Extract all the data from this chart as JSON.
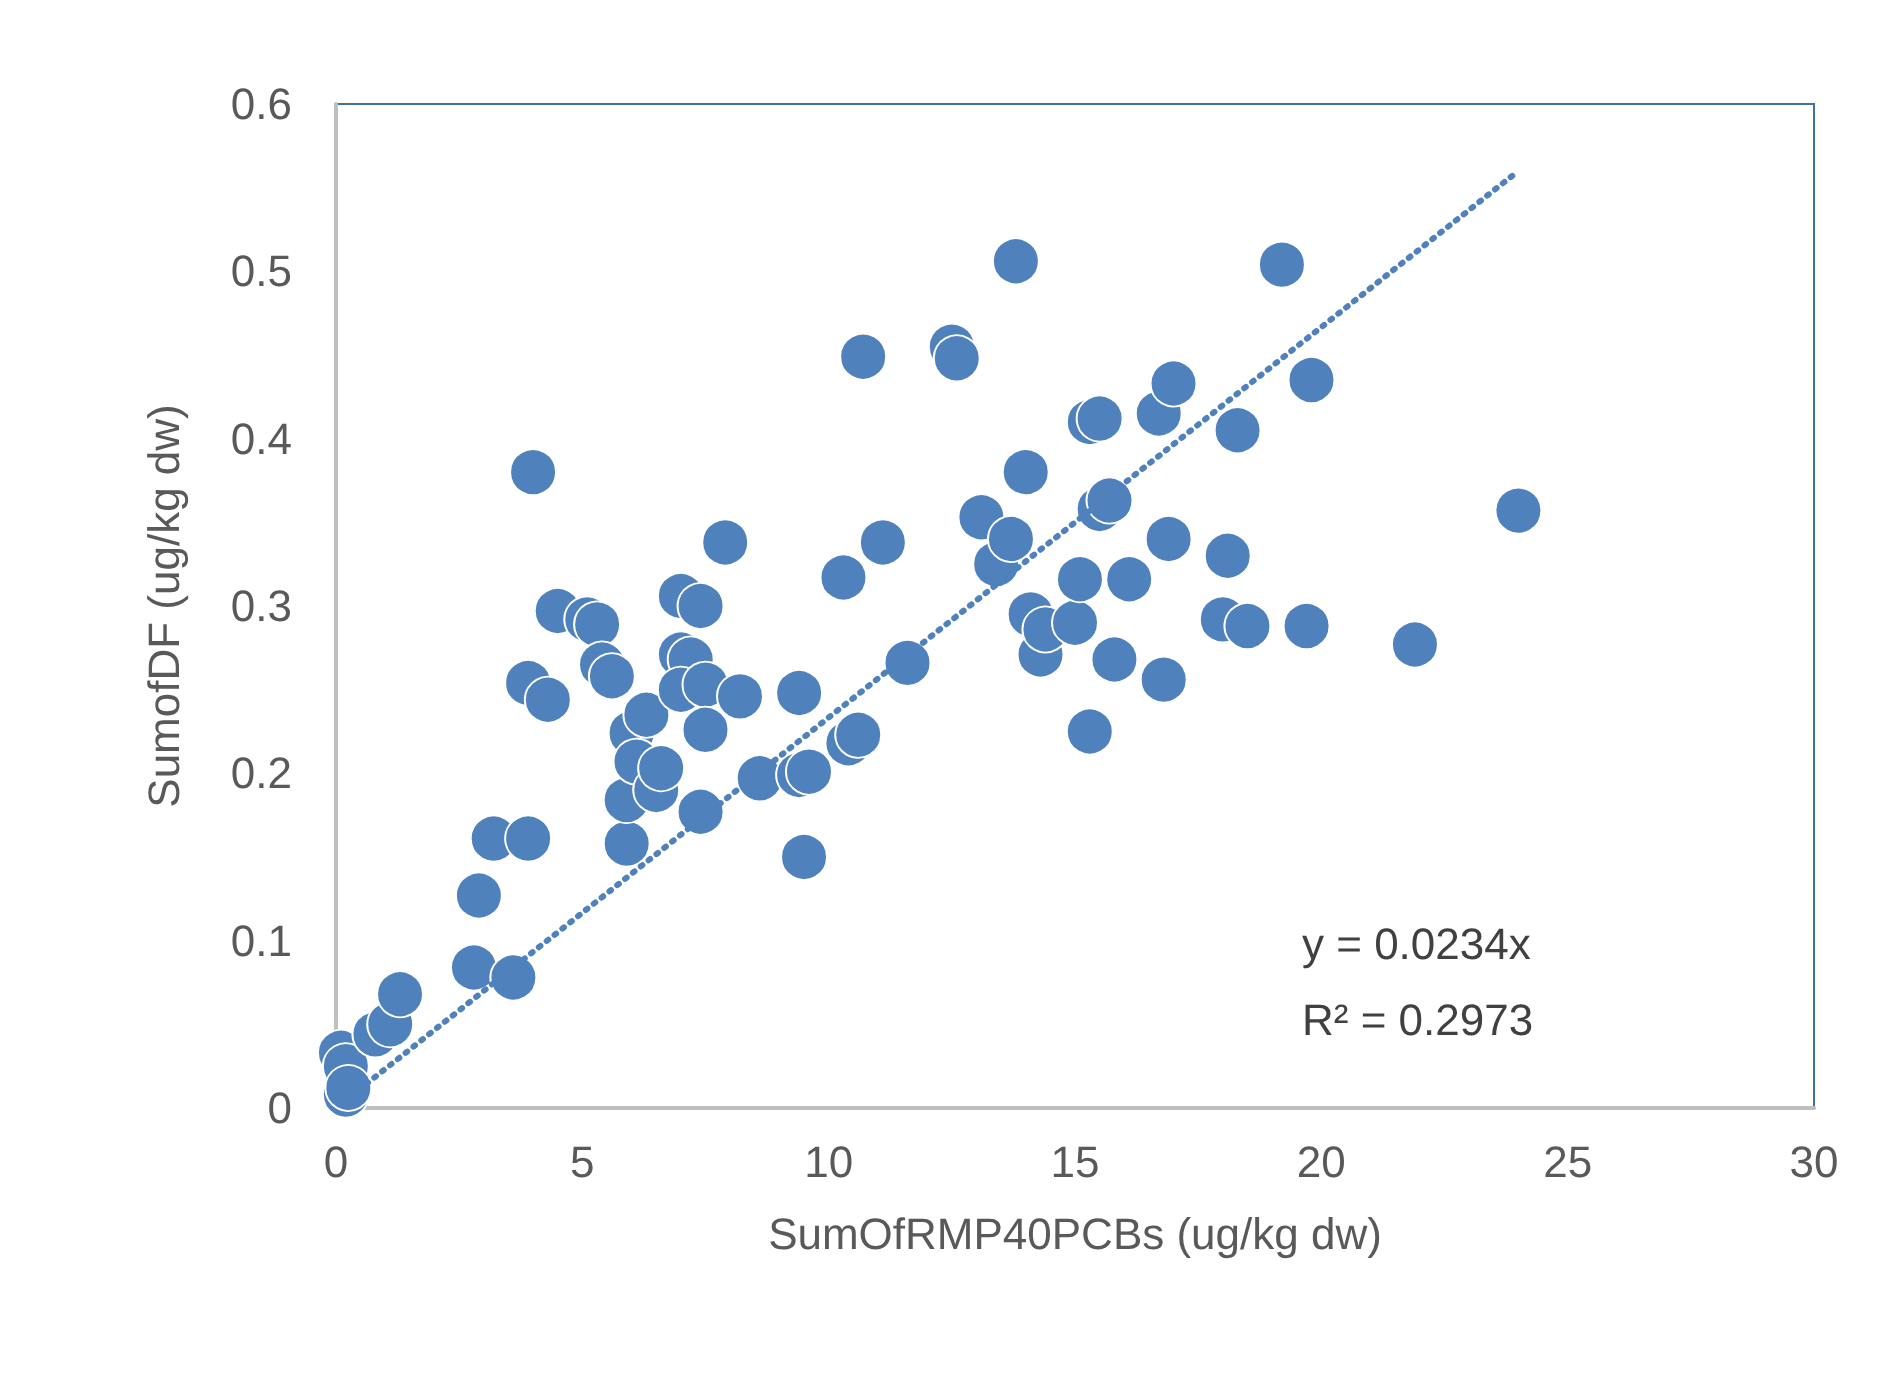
{
  "chart_data": {
    "type": "scatter",
    "xlabel": "SumOfRMP40PCBs (ug/kg dw)",
    "ylabel": "SumofDF (ug/kg dw)",
    "xlim": [
      0,
      30
    ],
    "xticks": [
      0,
      5,
      10,
      15,
      20,
      25,
      30
    ],
    "ylim": [
      0,
      0.6
    ],
    "yticks": [
      0,
      0.1,
      0.2,
      0.3,
      0.4,
      0.5,
      0.6
    ],
    "grid": false,
    "marker": "circle",
    "annotations": [
      "y = 0.0234x",
      "R² = 0.2973"
    ],
    "series": [
      {
        "color": "#4f81bd",
        "x": [
          0.1,
          0.2,
          0.2,
          0.25,
          0.8,
          1.1,
          1.3,
          2.8,
          3.6,
          2.9,
          3.2,
          3.9,
          4.0,
          3.9,
          4.3,
          4.5,
          5.1,
          5.3,
          5.4,
          5.6,
          5.9,
          5.9,
          6.0,
          6.1,
          6.3,
          6.5,
          6.6,
          7.0,
          7.0,
          7.2,
          7.0,
          7.4,
          7.5,
          7.5,
          7.4,
          7.9,
          8.2,
          8.6,
          9.4,
          9.4,
          9.6,
          9.5,
          10.3,
          10.4,
          10.6,
          10.7,
          11.1,
          11.6,
          12.5,
          12.6,
          13.1,
          13.4,
          13.7,
          13.8,
          14.0,
          14.1,
          14.3,
          14.4,
          15.0,
          15.1,
          15.3,
          15.3,
          15.5,
          15.5,
          15.7,
          15.8,
          16.1,
          16.7,
          16.8,
          16.9,
          17.0,
          18.0,
          18.1,
          18.3,
          18.5,
          19.2,
          19.7,
          19.8,
          21.9,
          24.0
        ],
        "values": [
          0.033,
          0.025,
          0.008,
          0.012,
          0.044,
          0.05,
          0.068,
          0.084,
          0.078,
          0.127,
          0.161,
          0.161,
          0.38,
          0.254,
          0.244,
          0.297,
          0.292,
          0.289,
          0.265,
          0.258,
          0.158,
          0.184,
          0.224,
          0.207,
          0.235,
          0.19,
          0.203,
          0.306,
          0.271,
          0.268,
          0.25,
          0.3,
          0.253,
          0.226,
          0.177,
          0.338,
          0.246,
          0.197,
          0.248,
          0.199,
          0.201,
          0.15,
          0.317,
          0.218,
          0.223,
          0.449,
          0.338,
          0.266,
          0.455,
          0.448,
          0.353,
          0.325,
          0.34,
          0.506,
          0.38,
          0.295,
          0.271,
          0.286,
          0.29,
          0.316,
          0.225,
          0.41,
          0.412,
          0.358,
          0.363,
          0.268,
          0.316,
          0.415,
          0.256,
          0.34,
          0.433,
          0.292,
          0.33,
          0.405,
          0.288,
          0.504,
          0.288,
          0.435,
          0.277,
          0.357
        ]
      },
      {
        "type": "line",
        "color": "#4f81bd",
        "line_style": "dotted",
        "marker": "none",
        "x": [
          0.3,
          24.0
        ],
        "values": [
          0.007,
          0.56
        ]
      }
    ]
  }
}
